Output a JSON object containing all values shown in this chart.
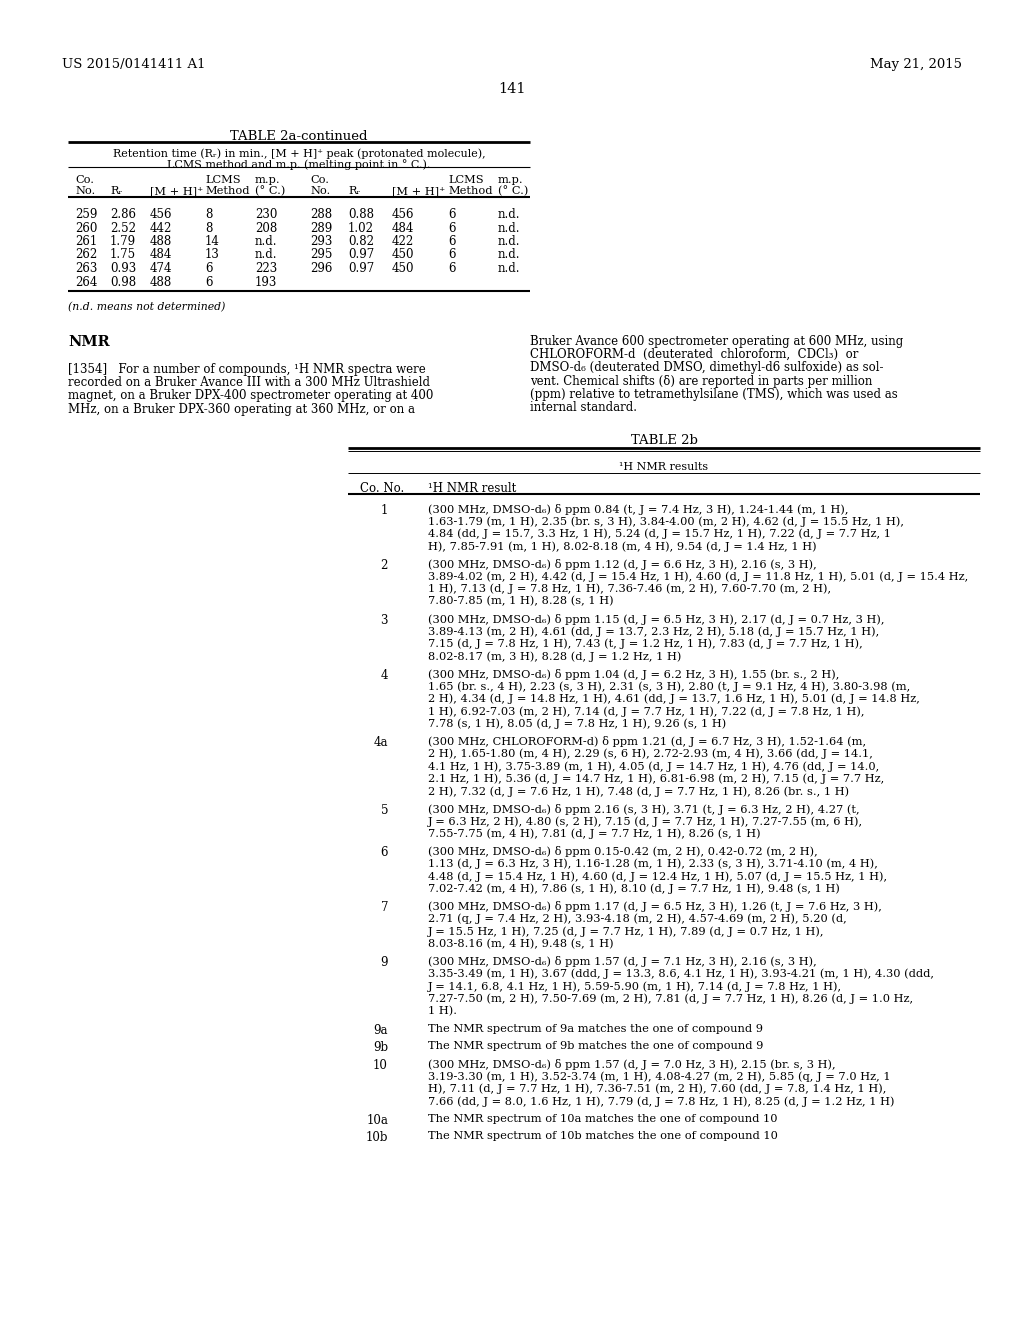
{
  "bg_color": "#ffffff",
  "header_left": "US 2015/0141411 A1",
  "header_right": "May 21, 2015",
  "page_number": "141",
  "table2a_title": "TABLE 2a-continued",
  "table2a_subtitle1": "Retention time (Rᵣ) in min., [M + H]⁺ peak (protonated molecule),",
  "table2a_subtitle2": "LCMS method and m.p. (melting point in ° C.).",
  "table2a_data": [
    [
      "259",
      "2.86",
      "456",
      "8",
      "230",
      "288",
      "0.88",
      "456",
      "6",
      "n.d."
    ],
    [
      "260",
      "2.52",
      "442",
      "8",
      "208",
      "289",
      "1.02",
      "484",
      "6",
      "n.d."
    ],
    [
      "261",
      "1.79",
      "488",
      "14",
      "n.d.",
      "293",
      "0.82",
      "422",
      "6",
      "n.d."
    ],
    [
      "262",
      "1.75",
      "484",
      "13",
      "n.d.",
      "295",
      "0.97",
      "450",
      "6",
      "n.d."
    ],
    [
      "263",
      "0.93",
      "474",
      "6",
      "223",
      "296",
      "0.97",
      "450",
      "6",
      "n.d."
    ],
    [
      "264",
      "0.98",
      "488",
      "6",
      "193",
      "",
      "",
      "",
      "",
      ""
    ]
  ],
  "footnote": "(n.d. means not determined)",
  "nmr_heading": "NMR",
  "nmr_para_left": "[1354]   For a number of compounds, ¹H NMR spectra were\nrecorded on a Bruker Avance III with a 300 MHz Ultrashield\nmagnet, on a Bruker DPX-400 spectrometer operating at 400\nMHz, on a Bruker DPX-360 operating at 360 MHz, or on a",
  "nmr_para_right": "Bruker Avance 600 spectrometer operating at 600 MHz, using\nCHLOROFORM-d  (deuterated  chloroform,  CDCl₃)  or\nDMSO-d₆ (deuterated DMSO, dimethyl-d6 sulfoxide) as sol-\nvent. Chemical shifts (δ) are reported in parts per million\n(ppm) relative to tetramethylsilane (TMS), which was used as\ninternal standard.",
  "table2b_title": "TABLE 2b",
  "table2b_header": "¹H NMR results",
  "nmr_data": [
    [
      "1",
      "(300 MHz, DMSO-d₆) δ ppm 0.84 (t, J = 7.4 Hz, 3 H), 1.24-1.44 (m, 1 H),\n1.63-1.79 (m, 1 H), 2.35 (br. s, 3 H), 3.84-4.00 (m, 2 H), 4.62 (d, J = 15.5 Hz, 1 H),\n4.84 (dd, J = 15.7, 3.3 Hz, 1 H), 5.24 (d, J = 15.7 Hz, 1 H), 7.22 (d, J = 7.7 Hz, 1\nH), 7.85-7.91 (m, 1 H), 8.02-8.18 (m, 4 H), 9.54 (d, J = 1.4 Hz, 1 H)"
    ],
    [
      "2",
      "(300 MHz, DMSO-d₆) δ ppm 1.12 (d, J = 6.6 Hz, 3 H), 2.16 (s, 3 H),\n3.89-4.02 (m, 2 H), 4.42 (d, J = 15.4 Hz, 1 H), 4.60 (d, J = 11.8 Hz, 1 H), 5.01 (d, J = 15.4 Hz,\n1 H), 7.13 (d, J = 7.8 Hz, 1 H), 7.36-7.46 (m, 2 H), 7.60-7.70 (m, 2 H),\n7.80-7.85 (m, 1 H), 8.28 (s, 1 H)"
    ],
    [
      "3",
      "(300 MHz, DMSO-d₆) δ ppm 1.15 (d, J = 6.5 Hz, 3 H), 2.17 (d, J = 0.7 Hz, 3 H),\n3.89-4.13 (m, 2 H), 4.61 (dd, J = 13.7, 2.3 Hz, 2 H), 5.18 (d, J = 15.7 Hz, 1 H),\n7.15 (d, J = 7.8 Hz, 1 H), 7.43 (t, J = 1.2 Hz, 1 H), 7.83 (d, J = 7.7 Hz, 1 H),\n8.02-8.17 (m, 3 H), 8.28 (d, J = 1.2 Hz, 1 H)"
    ],
    [
      "4",
      "(300 MHz, DMSO-d₆) δ ppm 1.04 (d, J = 6.2 Hz, 3 H), 1.55 (br. s., 2 H),\n1.65 (br. s., 4 H), 2.23 (s, 3 H), 2.31 (s, 3 H), 2.80 (t, J = 9.1 Hz, 4 H), 3.80-3.98 (m,\n2 H), 4.34 (d, J = 14.8 Hz, 1 H), 4.61 (dd, J = 13.7, 1.6 Hz, 1 H), 5.01 (d, J = 14.8 Hz,\n1 H), 6.92-7.03 (m, 2 H), 7.14 (d, J = 7.7 Hz, 1 H), 7.22 (d, J = 7.8 Hz, 1 H),\n7.78 (s, 1 H), 8.05 (d, J = 7.8 Hz, 1 H), 9.26 (s, 1 H)"
    ],
    [
      "4a",
      "(300 MHz, CHLOROFORM-d) δ ppm 1.21 (d, J = 6.7 Hz, 3 H), 1.52-1.64 (m,\n2 H), 1.65-1.80 (m, 4 H), 2.29 (s, 6 H), 2.72-2.93 (m, 4 H), 3.66 (dd, J = 14.1,\n4.1 Hz, 1 H), 3.75-3.89 (m, 1 H), 4.05 (d, J = 14.7 Hz, 1 H), 4.76 (dd, J = 14.0,\n2.1 Hz, 1 H), 5.36 (d, J = 14.7 Hz, 1 H), 6.81-6.98 (m, 2 H), 7.15 (d, J = 7.7 Hz,\n2 H), 7.32 (d, J = 7.6 Hz, 1 H), 7.48 (d, J = 7.7 Hz, 1 H), 8.26 (br. s., 1 H)"
    ],
    [
      "5",
      "(300 MHz, DMSO-d₆) δ ppm 2.16 (s, 3 H), 3.71 (t, J = 6.3 Hz, 2 H), 4.27 (t,\nJ = 6.3 Hz, 2 H), 4.80 (s, 2 H), 7.15 (d, J = 7.7 Hz, 1 H), 7.27-7.55 (m, 6 H),\n7.55-7.75 (m, 4 H), 7.81 (d, J = 7.7 Hz, 1 H), 8.26 (s, 1 H)"
    ],
    [
      "6",
      "(300 MHz, DMSO-d₆) δ ppm 0.15-0.42 (m, 2 H), 0.42-0.72 (m, 2 H),\n1.13 (d, J = 6.3 Hz, 3 H), 1.16-1.28 (m, 1 H), 2.33 (s, 3 H), 3.71-4.10 (m, 4 H),\n4.48 (d, J = 15.4 Hz, 1 H), 4.60 (d, J = 12.4 Hz, 1 H), 5.07 (d, J = 15.5 Hz, 1 H),\n7.02-7.42 (m, 4 H), 7.86 (s, 1 H), 8.10 (d, J = 7.7 Hz, 1 H), 9.48 (s, 1 H)"
    ],
    [
      "7",
      "(300 MHz, DMSO-d₆) δ ppm 1.17 (d, J = 6.5 Hz, 3 H), 1.26 (t, J = 7.6 Hz, 3 H),\n2.71 (q, J = 7.4 Hz, 2 H), 3.93-4.18 (m, 2 H), 4.57-4.69 (m, 2 H), 5.20 (d,\nJ = 15.5 Hz, 1 H), 7.25 (d, J = 7.7 Hz, 1 H), 7.89 (d, J = 0.7 Hz, 1 H),\n8.03-8.16 (m, 4 H), 9.48 (s, 1 H)"
    ],
    [
      "9",
      "(300 MHz, DMSO-d₆) δ ppm 1.57 (d, J = 7.1 Hz, 3 H), 2.16 (s, 3 H),\n3.35-3.49 (m, 1 H), 3.67 (ddd, J = 13.3, 8.6, 4.1 Hz, 1 H), 3.93-4.21 (m, 1 H), 4.30 (ddd,\nJ = 14.1, 6.8, 4.1 Hz, 1 H), 5.59-5.90 (m, 1 H), 7.14 (d, J = 7.8 Hz, 1 H),\n7.27-7.50 (m, 2 H), 7.50-7.69 (m, 2 H), 7.81 (d, J = 7.7 Hz, 1 H), 8.26 (d, J = 1.0 Hz,\n1 H)."
    ],
    [
      "9a",
      "The NMR spectrum of 9a matches the one of compound 9"
    ],
    [
      "9b",
      "The NMR spectrum of 9b matches the one of compound 9"
    ],
    [
      "10",
      "(300 MHz, DMSO-d₆) δ ppm 1.57 (d, J = 7.0 Hz, 3 H), 2.15 (br. s, 3 H),\n3.19-3.30 (m, 1 H), 3.52-3.74 (m, 1 H), 4.08-4.27 (m, 2 H), 5.85 (q, J = 7.0 Hz, 1\nH), 7.11 (d, J = 7.7 Hz, 1 H), 7.36-7.51 (m, 2 H), 7.60 (dd, J = 7.8, 1.4 Hz, 1 H),\n7.66 (dd, J = 8.0, 1.6 Hz, 1 H), 7.79 (d, J = 7.8 Hz, 1 H), 8.25 (d, J = 1.2 Hz, 1 H)"
    ],
    [
      "10a",
      "The NMR spectrum of 10a matches the one of compound 10"
    ],
    [
      "10b",
      "The NMR spectrum of 10b matches the one of compound 10"
    ]
  ]
}
